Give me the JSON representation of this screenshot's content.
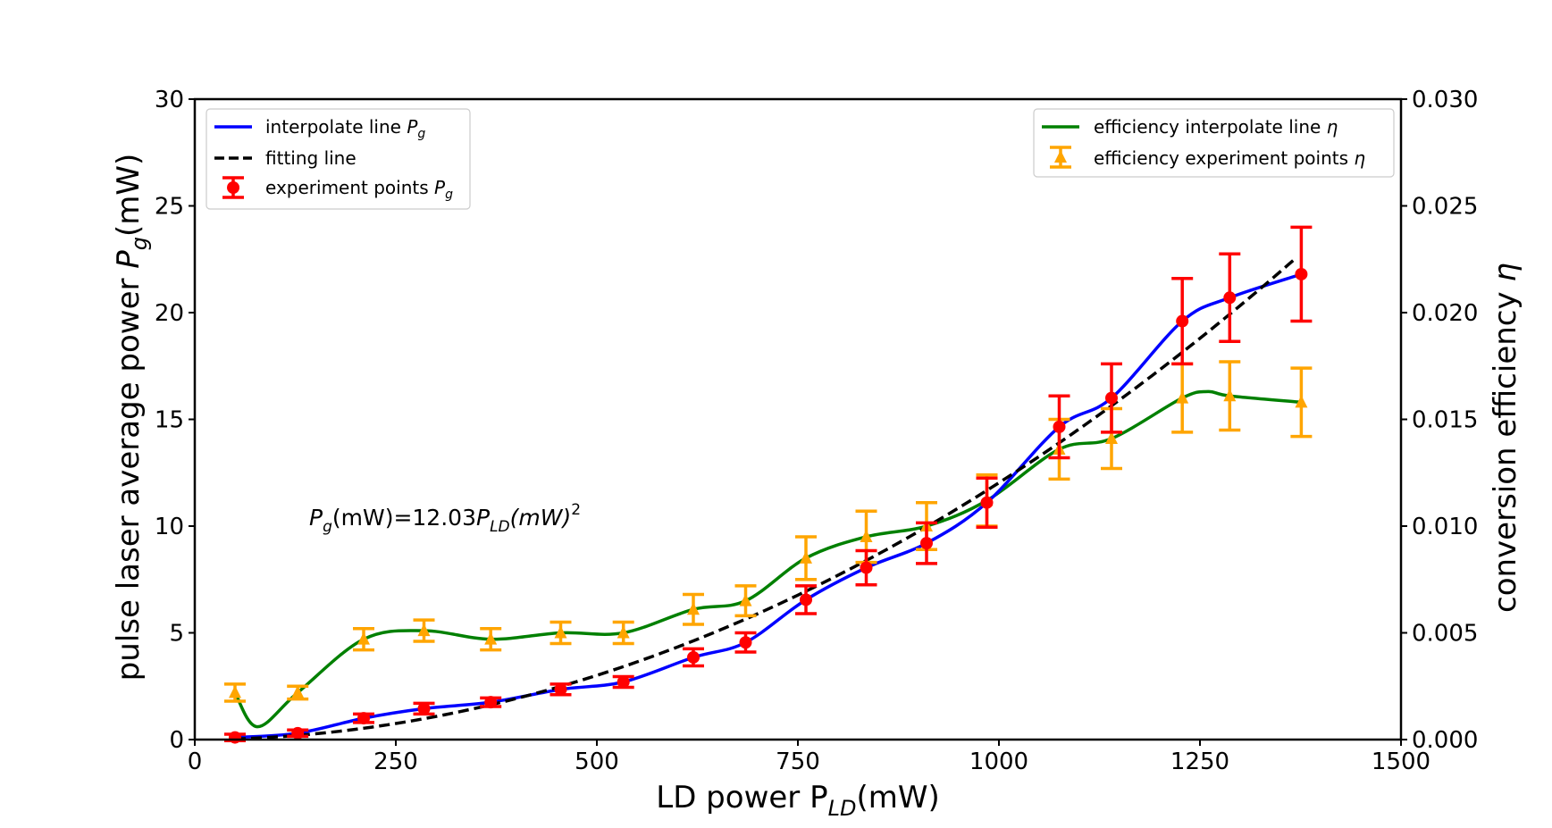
{
  "chart_data": {
    "type": "line",
    "xlabel": "LD power P",
    "xlabel_sub": "LD",
    "xlabel_unit": "(mW)",
    "ylabel_left_main": "pulse laser average power ",
    "ylabel_left_var": "P",
    "ylabel_left_sub": "g",
    "ylabel_left_unit": "(mW)",
    "ylabel_right_main": "conversion efficiency ",
    "ylabel_right_var": "η",
    "xlim": [
      0,
      1500
    ],
    "ylim_left": [
      0,
      30
    ],
    "ylim_right": [
      0,
      0.03
    ],
    "xticks": [
      "0",
      "250",
      "500",
      "750",
      "1000",
      "1250",
      "1500"
    ],
    "yticks_left": [
      "0",
      "5",
      "10",
      "15",
      "20",
      "25",
      "30"
    ],
    "yticks_right": [
      "0.000",
      "0.005",
      "0.010",
      "0.015",
      "0.020",
      "0.025",
      "0.030"
    ],
    "grid": false,
    "annotation": {
      "p": "P",
      "g": "g",
      "mid": "(mW)=12.03",
      "pld": "P",
      "ld": "LD",
      "mw": "(mW)",
      "exp": "2"
    },
    "legend_left": [
      {
        "label": "interpolate line ",
        "var": "P",
        "sub": "g"
      },
      {
        "label": "fitting line",
        "var": "",
        "sub": ""
      },
      {
        "label": "experiment points ",
        "var": "P",
        "sub": "g"
      }
    ],
    "legend_right": [
      {
        "label": "efficiency interpolate line ",
        "var": "η"
      },
      {
        "label": " efficiency experiment points ",
        "var": "η"
      }
    ],
    "legend_left_placement": "top-left",
    "legend_right_placement": "top-right",
    "colors": {
      "interpolate_pg": "#0000ff",
      "fitting": "#000000",
      "points_pg": "#ff0000",
      "interpolate_eta": "#008000",
      "points_eta": "#ffa500"
    },
    "experiment_points_pg": {
      "x": [
        50,
        128,
        210,
        285,
        368,
        455,
        533,
        620,
        685,
        760,
        835,
        910,
        985,
        1075,
        1140,
        1228,
        1287,
        1376
      ],
      "y": [
        0.1,
        0.3,
        1.0,
        1.45,
        1.75,
        2.35,
        2.7,
        3.85,
        4.55,
        6.55,
        8.05,
        9.2,
        11.1,
        14.65,
        16.0,
        19.6,
        20.7,
        21.8
      ],
      "err": [
        0.15,
        0.15,
        0.2,
        0.25,
        0.2,
        0.25,
        0.25,
        0.4,
        0.45,
        0.65,
        0.8,
        0.95,
        1.15,
        1.45,
        1.6,
        2.0,
        2.05,
        2.2
      ]
    },
    "experiment_points_eta": {
      "x": [
        50,
        128,
        210,
        285,
        368,
        455,
        533,
        620,
        685,
        760,
        835,
        910,
        985,
        1075,
        1140,
        1228,
        1287,
        1376
      ],
      "y": [
        0.0022,
        0.0022,
        0.0047,
        0.0051,
        0.0047,
        0.005,
        0.005,
        0.0061,
        0.0065,
        0.0085,
        0.0095,
        0.01,
        0.0112,
        0.0136,
        0.0141,
        0.016,
        0.0161,
        0.0158
      ],
      "err": [
        0.0004,
        0.0003,
        0.0005,
        0.0005,
        0.0005,
        0.0005,
        0.0005,
        0.0007,
        0.0007,
        0.001,
        0.0012,
        0.0011,
        0.0012,
        0.0014,
        0.0014,
        0.0016,
        0.0016,
        0.0016
      ]
    },
    "interpolate_eta_extra": {
      "x": [
        78,
        1260
      ],
      "y": [
        0.0006,
        0.0163
      ]
    },
    "fitting_line": {
      "coefficient": 12.03,
      "x_unit_scale": 1000,
      "x_range": [
        50,
        1376
      ]
    }
  }
}
